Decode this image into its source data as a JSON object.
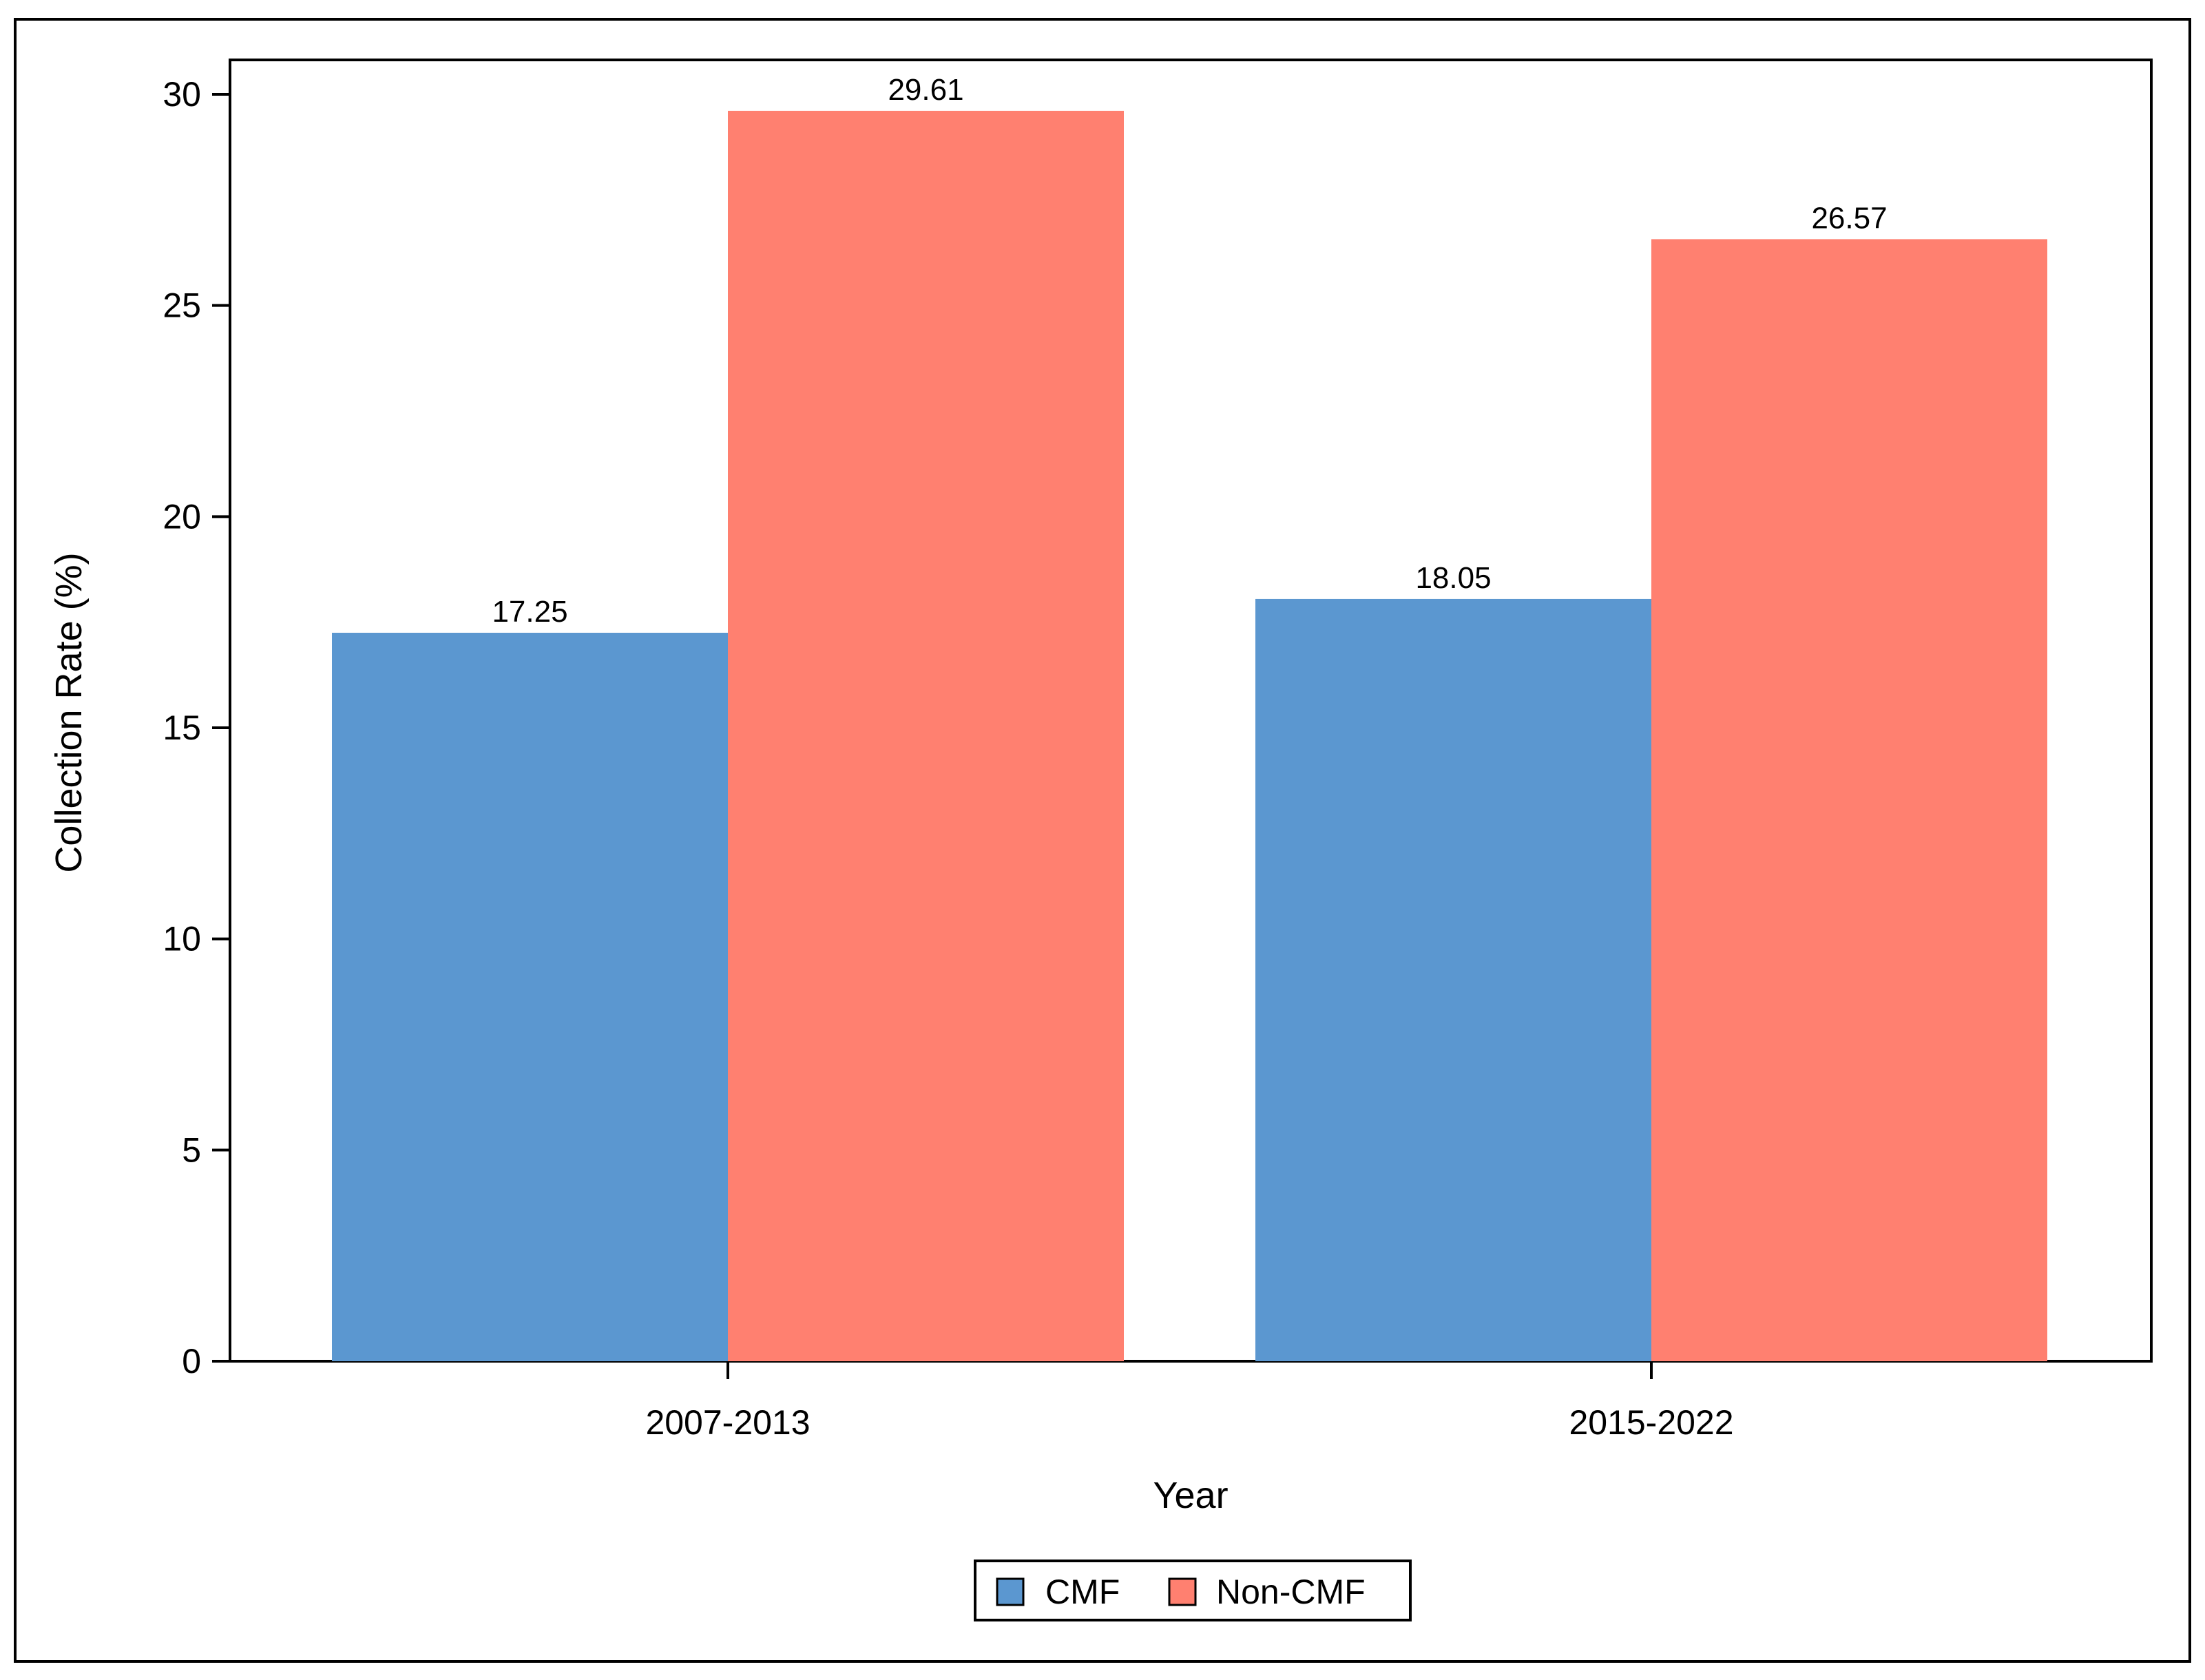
{
  "chart_data": {
    "type": "bar",
    "title": "",
    "xlabel": "Year",
    "ylabel": "Collection Rate (%)",
    "categories": [
      "2007-2013",
      "2015-2022"
    ],
    "series": [
      {
        "name": "CMF",
        "values": [
          17.25,
          18.05
        ],
        "labels": [
          "17.25",
          "18.05"
        ],
        "color": "#5b97d0"
      },
      {
        "name": "Non-CMF",
        "values": [
          29.61,
          26.57
        ],
        "labels": [
          "29.61",
          "26.57"
        ],
        "color": "#ff8070"
      }
    ],
    "ylim": [
      0,
      30
    ],
    "yticks": [
      0,
      5,
      10,
      15,
      20,
      25,
      30
    ],
    "ytick_labels": [
      "0",
      "5",
      "10",
      "15",
      "20",
      "25",
      "30"
    ],
    "grid": false,
    "legend": {
      "position": "bottom-center",
      "entries": [
        "CMF",
        "Non-CMF"
      ]
    }
  }
}
